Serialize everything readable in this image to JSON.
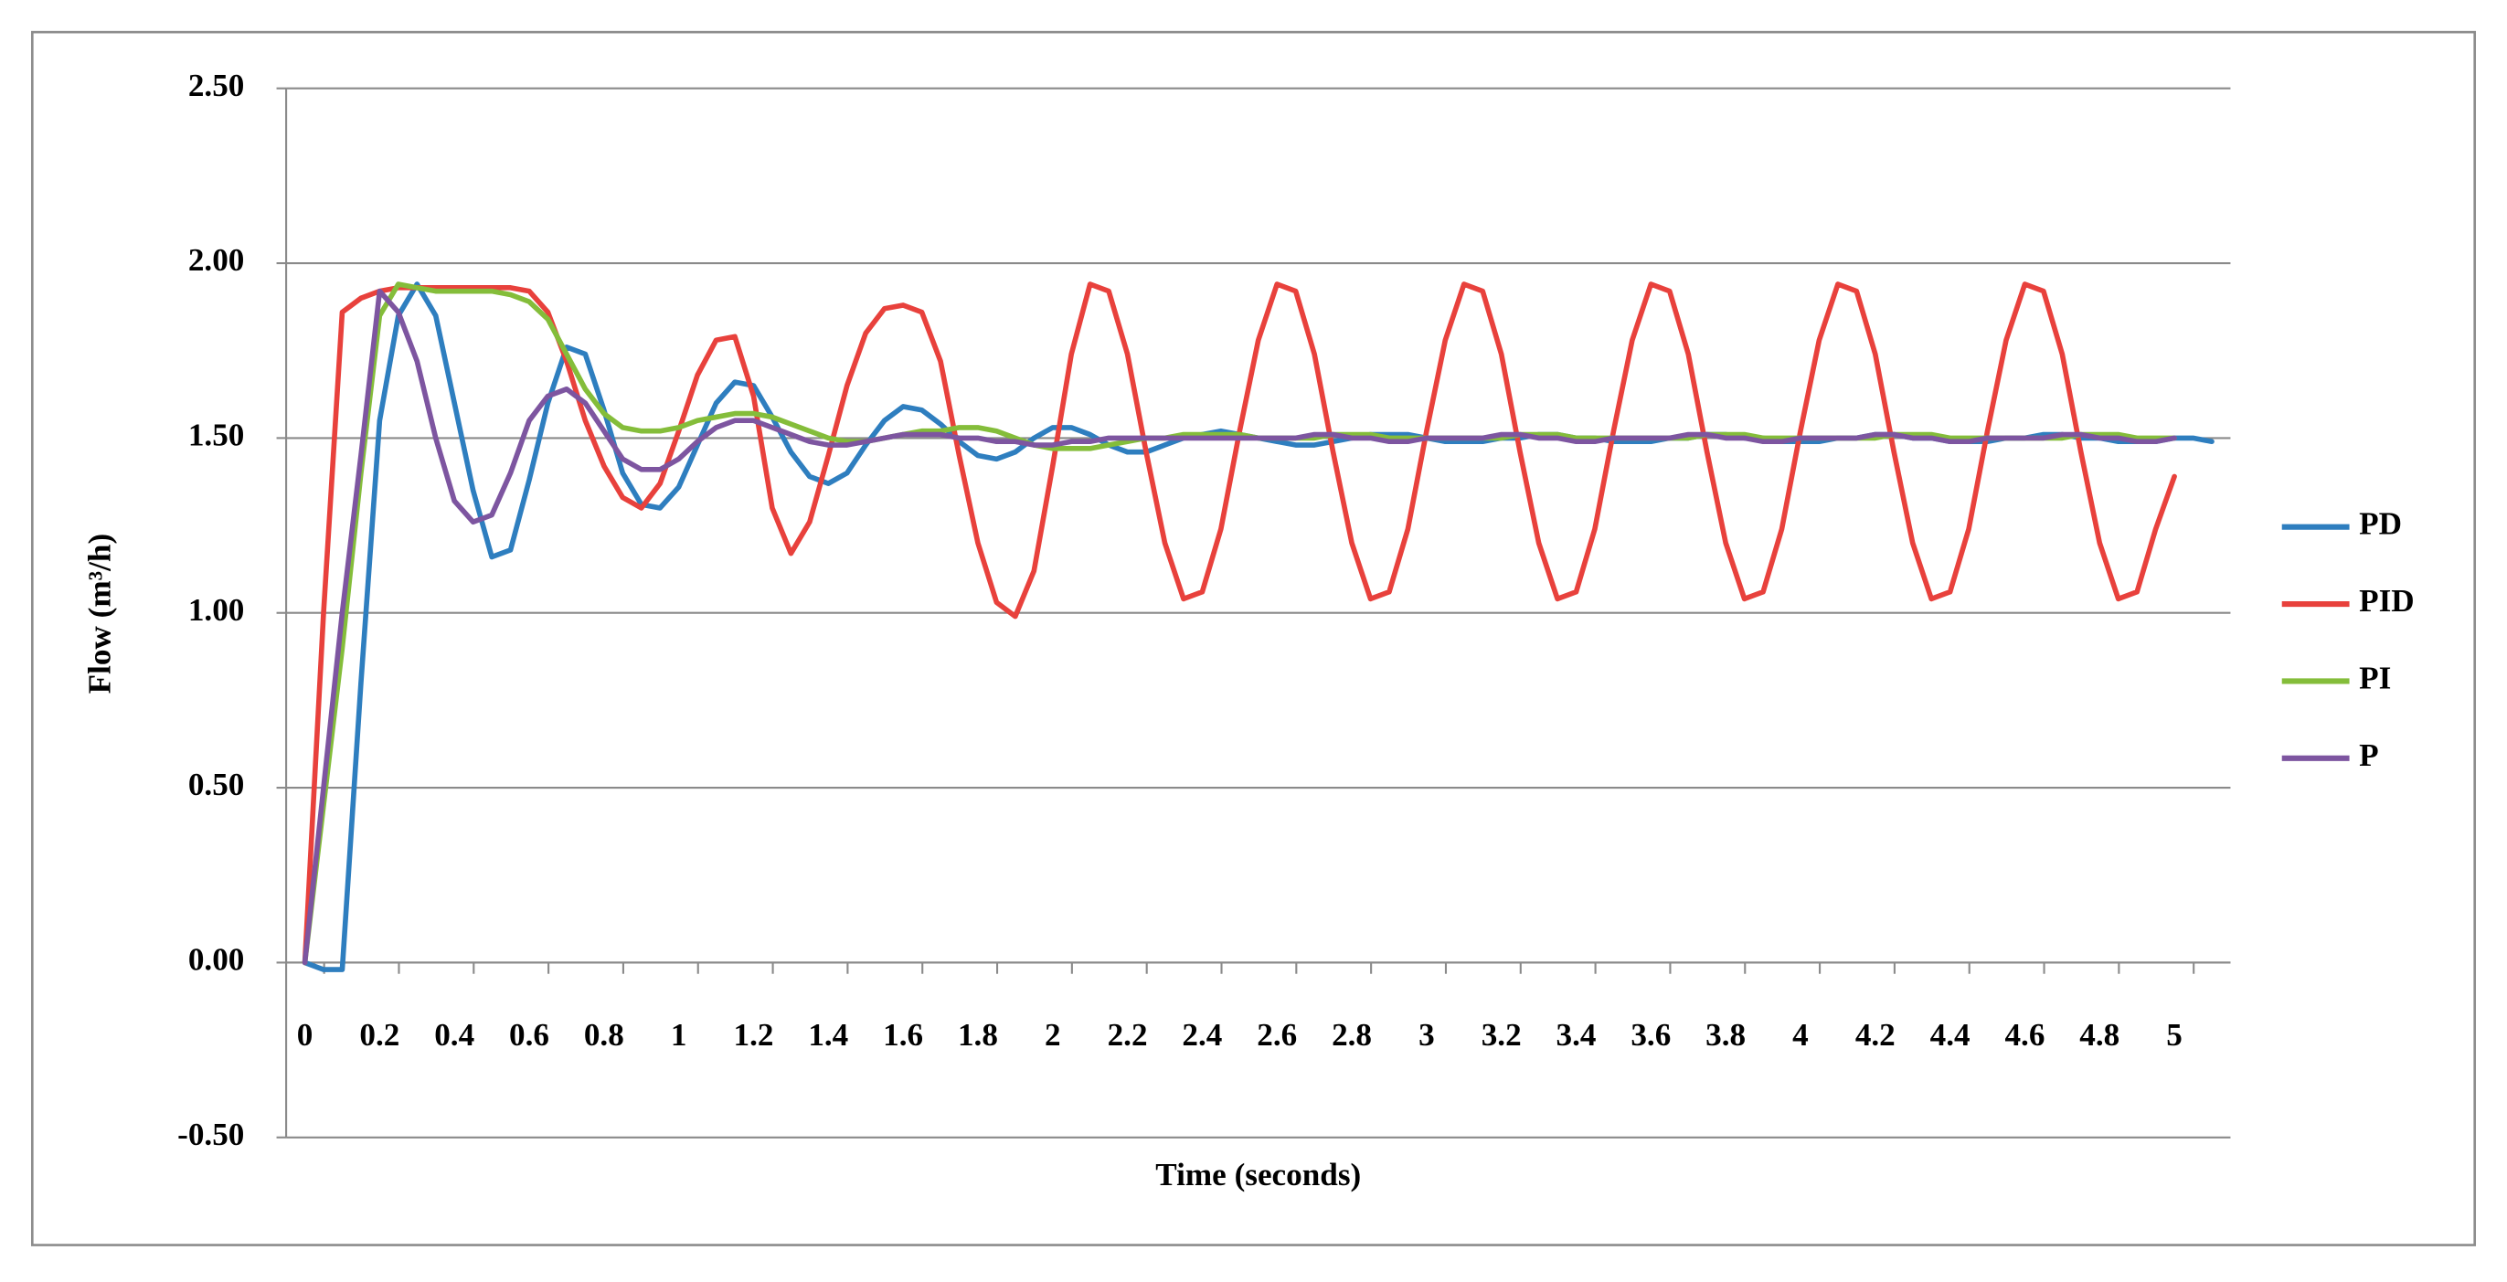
{
  "chart_data": {
    "type": "line",
    "x_label": "Time (seconds)",
    "y_label": "Flow (m³/h)",
    "x": [
      0,
      0.05,
      0.1,
      0.15,
      0.2,
      0.25,
      0.3,
      0.35,
      0.4,
      0.45,
      0.5,
      0.55,
      0.6,
      0.65,
      0.7,
      0.75,
      0.8,
      0.85,
      0.9,
      0.95,
      1,
      1.05,
      1.1,
      1.15,
      1.2,
      1.25,
      1.3,
      1.35,
      1.4,
      1.45,
      1.5,
      1.55,
      1.6,
      1.65,
      1.7,
      1.75,
      1.8,
      1.85,
      1.9,
      1.95,
      2,
      2.05,
      2.1,
      2.15,
      2.2,
      2.25,
      2.3,
      2.35,
      2.4,
      2.45,
      2.5,
      2.55,
      2.6,
      2.65,
      2.7,
      2.75,
      2.8,
      2.85,
      2.9,
      2.95,
      3,
      3.05,
      3.1,
      3.15,
      3.2,
      3.25,
      3.3,
      3.35,
      3.4,
      3.45,
      3.5,
      3.55,
      3.6,
      3.65,
      3.7,
      3.75,
      3.8,
      3.85,
      3.9,
      3.95,
      4,
      4.05,
      4.1,
      4.15,
      4.2,
      4.25,
      4.3,
      4.35,
      4.4,
      4.45,
      4.5,
      4.55,
      4.6,
      4.65,
      4.7,
      4.75,
      4.8,
      4.85,
      4.9,
      4.95,
      5,
      5.05,
      5.1
    ],
    "series": [
      {
        "name": "PD",
        "color": "#2e7ebf",
        "values": [
          0,
          -0.02,
          -0.02,
          0.8,
          1.55,
          1.85,
          1.94,
          1.85,
          1.6,
          1.35,
          1.16,
          1.18,
          1.38,
          1.6,
          1.76,
          1.74,
          1.58,
          1.4,
          1.31,
          1.3,
          1.36,
          1.48,
          1.6,
          1.66,
          1.65,
          1.56,
          1.46,
          1.39,
          1.37,
          1.4,
          1.48,
          1.55,
          1.59,
          1.58,
          1.54,
          1.49,
          1.45,
          1.44,
          1.46,
          1.5,
          1.53,
          1.53,
          1.51,
          1.48,
          1.46,
          1.46,
          1.48,
          1.5,
          1.51,
          1.52,
          1.51,
          1.5,
          1.49,
          1.48,
          1.48,
          1.49,
          1.5,
          1.51,
          1.51,
          1.51,
          1.5,
          1.49,
          1.49,
          1.49,
          1.5,
          1.5,
          1.51,
          1.51,
          1.5,
          1.5,
          1.49,
          1.49,
          1.49,
          1.5,
          1.5,
          1.51,
          1.51,
          1.5,
          1.5,
          1.49,
          1.49,
          1.49,
          1.5,
          1.5,
          1.51,
          1.51,
          1.5,
          1.5,
          1.49,
          1.49,
          1.49,
          1.5,
          1.5,
          1.51,
          1.51,
          1.5,
          1.5,
          1.49,
          1.49,
          1.49,
          1.5,
          1.5,
          1.49
        ]
      },
      {
        "name": "PID",
        "color": "#e8413c",
        "values": [
          0,
          1.0,
          1.86,
          1.9,
          1.92,
          1.93,
          1.93,
          1.93,
          1.93,
          1.93,
          1.93,
          1.93,
          1.92,
          1.86,
          1.72,
          1.55,
          1.42,
          1.33,
          1.3,
          1.37,
          1.52,
          1.68,
          1.78,
          1.79,
          1.62,
          1.3,
          1.17,
          1.26,
          1.45,
          1.65,
          1.8,
          1.87,
          1.88,
          1.86,
          1.72,
          1.45,
          1.2,
          1.03,
          0.99,
          1.12,
          1.42,
          1.74,
          1.94,
          1.92,
          1.74,
          1.46,
          1.2,
          1.04,
          1.06,
          1.24,
          1.52,
          1.78,
          1.94,
          1.92,
          1.74,
          1.46,
          1.2,
          1.04,
          1.06,
          1.24,
          1.52,
          1.78,
          1.94,
          1.92,
          1.74,
          1.46,
          1.2,
          1.04,
          1.06,
          1.24,
          1.52,
          1.78,
          1.94,
          1.92,
          1.74,
          1.46,
          1.2,
          1.04,
          1.06,
          1.24,
          1.52,
          1.78,
          1.94,
          1.92,
          1.74,
          1.46,
          1.2,
          1.04,
          1.06,
          1.24,
          1.52,
          1.78,
          1.94,
          1.92,
          1.74,
          1.46,
          1.2,
          1.04,
          1.06,
          1.24,
          1.39,
          null,
          null
        ]
      },
      {
        "name": "PI",
        "color": "#84bd3a",
        "values": [
          0,
          0.45,
          0.9,
          1.4,
          1.85,
          1.94,
          1.93,
          1.92,
          1.92,
          1.92,
          1.92,
          1.91,
          1.89,
          1.84,
          1.74,
          1.64,
          1.57,
          1.53,
          1.52,
          1.52,
          1.53,
          1.55,
          1.56,
          1.57,
          1.57,
          1.56,
          1.54,
          1.52,
          1.5,
          1.49,
          1.49,
          1.5,
          1.51,
          1.52,
          1.52,
          1.53,
          1.53,
          1.52,
          1.5,
          1.48,
          1.47,
          1.47,
          1.47,
          1.48,
          1.49,
          1.5,
          1.5,
          1.51,
          1.51,
          1.51,
          1.51,
          1.5,
          1.5,
          1.5,
          1.5,
          1.51,
          1.51,
          1.51,
          1.5,
          1.5,
          1.5,
          1.5,
          1.5,
          1.5,
          1.5,
          1.51,
          1.51,
          1.51,
          1.5,
          1.5,
          1.5,
          1.5,
          1.5,
          1.5,
          1.5,
          1.51,
          1.51,
          1.51,
          1.5,
          1.5,
          1.5,
          1.5,
          1.5,
          1.5,
          1.5,
          1.51,
          1.51,
          1.51,
          1.5,
          1.5,
          1.5,
          1.5,
          1.5,
          1.5,
          1.5,
          1.51,
          1.51,
          1.51,
          1.5,
          1.5,
          1.5,
          null,
          null
        ]
      },
      {
        "name": "P",
        "color": "#7d55a0",
        "values": [
          0,
          0.5,
          1.0,
          1.45,
          1.92,
          1.86,
          1.72,
          1.5,
          1.32,
          1.26,
          1.28,
          1.4,
          1.55,
          1.62,
          1.64,
          1.6,
          1.52,
          1.44,
          1.41,
          1.41,
          1.44,
          1.49,
          1.53,
          1.55,
          1.55,
          1.53,
          1.51,
          1.49,
          1.48,
          1.48,
          1.49,
          1.5,
          1.51,
          1.51,
          1.51,
          1.5,
          1.5,
          1.49,
          1.49,
          1.48,
          1.48,
          1.49,
          1.49,
          1.5,
          1.5,
          1.5,
          1.5,
          1.5,
          1.5,
          1.5,
          1.5,
          1.5,
          1.5,
          1.5,
          1.51,
          1.51,
          1.5,
          1.5,
          1.49,
          1.49,
          1.5,
          1.5,
          1.5,
          1.5,
          1.51,
          1.51,
          1.5,
          1.5,
          1.49,
          1.49,
          1.5,
          1.5,
          1.5,
          1.5,
          1.51,
          1.51,
          1.5,
          1.5,
          1.49,
          1.49,
          1.5,
          1.5,
          1.5,
          1.5,
          1.51,
          1.51,
          1.5,
          1.5,
          1.49,
          1.49,
          1.5,
          1.5,
          1.5,
          1.5,
          1.51,
          1.51,
          1.5,
          1.5,
          1.49,
          1.49,
          1.5,
          null,
          null
        ]
      }
    ],
    "xlim": [
      -0.05,
      5.15
    ],
    "xticks": [
      0,
      0.2,
      0.4,
      0.6,
      0.8,
      1,
      1.2,
      1.4,
      1.6,
      1.8,
      2,
      2.2,
      2.4,
      2.6,
      2.8,
      3,
      3.2,
      3.4,
      3.6,
      3.8,
      4,
      4.2,
      4.4,
      4.6,
      4.8,
      5
    ],
    "ylim": [
      -0.5,
      2.5
    ],
    "yticks": [
      {
        "value": -0.5,
        "label": "-0.50"
      },
      {
        "value": 0,
        "label": "0.00"
      },
      {
        "value": 0.5,
        "label": "0.50"
      },
      {
        "value": 1,
        "label": "1.00"
      },
      {
        "value": 1.5,
        "label": "1.50"
      },
      {
        "value": 2,
        "label": "2.00"
      },
      {
        "value": 2.5,
        "label": "2.50"
      }
    ],
    "grid": true,
    "legend": "right"
  }
}
